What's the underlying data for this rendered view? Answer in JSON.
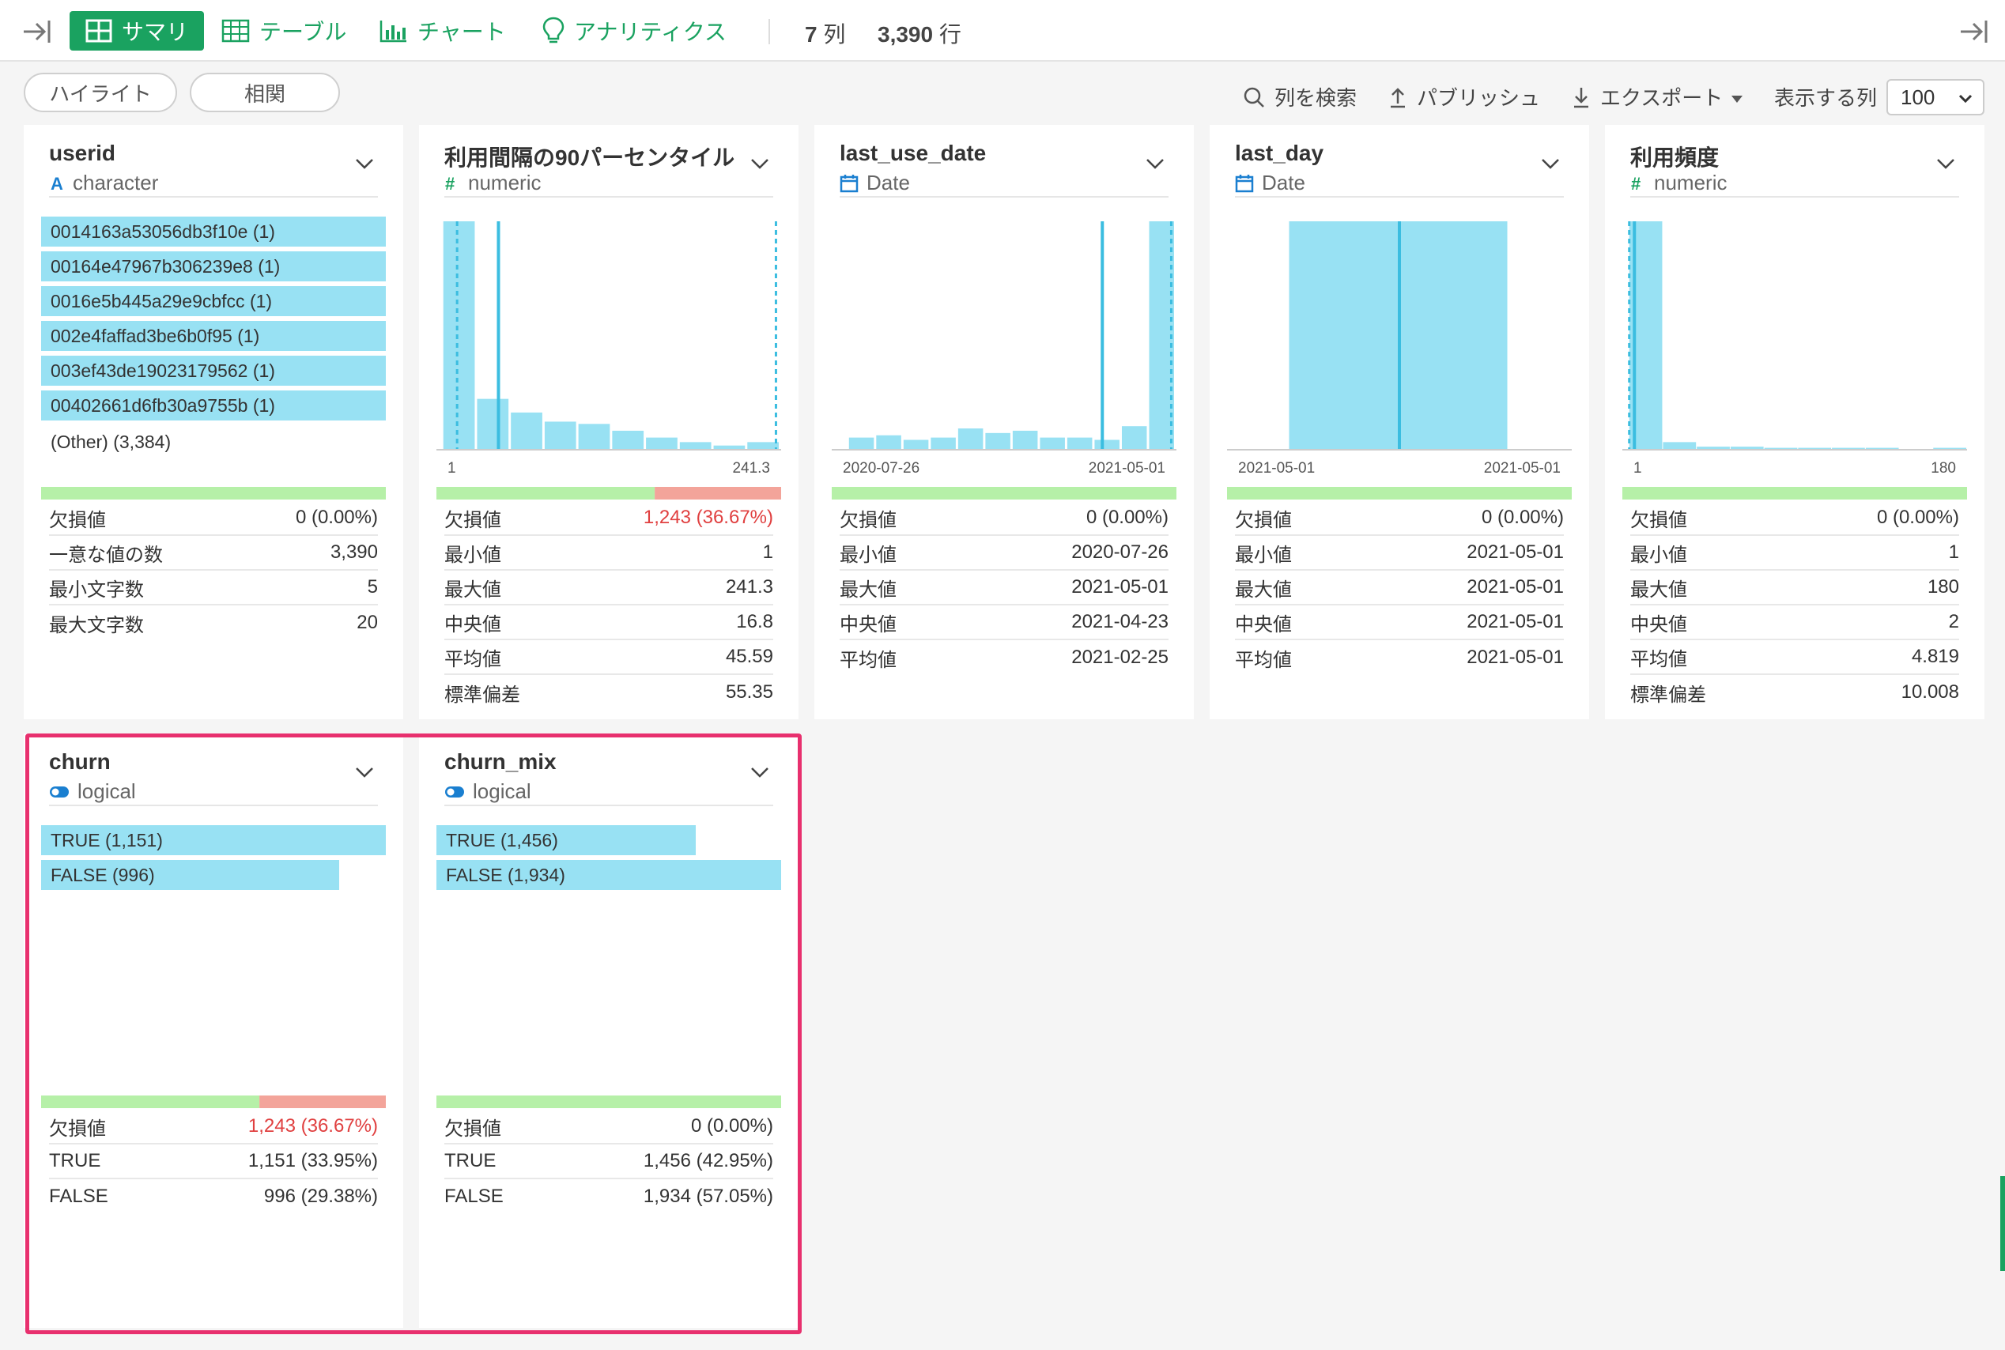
{
  "toolbar": {
    "tabs": [
      {
        "label": "サマリ",
        "icon": "grid-icon",
        "active": true
      },
      {
        "label": "テーブル",
        "icon": "table-icon"
      },
      {
        "label": "チャート",
        "icon": "bar-chart-icon"
      },
      {
        "label": "アナリティクス",
        "icon": "lightbulb-icon"
      }
    ],
    "columns_count": "7",
    "columns_unit": "列",
    "rows_count": "3,390",
    "rows_unit": "行"
  },
  "subbar": {
    "highlight_label": "ハイライト",
    "correlation_label": "相関",
    "search_label": "列を検索",
    "publish_label": "パブリッシュ",
    "export_label": "エクスポート",
    "display_columns_label": "表示する列",
    "display_columns_value": "100"
  },
  "colors": {
    "accent": "#1aa260",
    "bar": "#98e1f3",
    "ok": "#b6f0a8",
    "missing": "#f3a49a",
    "highlight": "#e8306e"
  },
  "cards": {
    "userid": {
      "title": "userid",
      "type": "character",
      "categories": [
        "0014163a53056db3f10e (1)",
        "00164e47967b306239e8 (1)",
        "0016e5b445a29e9cbfcc (1)",
        "002e4faffad3be6b0f95 (1)",
        "003ef43de19023179562 (1)",
        "00402661d6fb30a9755b (1)"
      ],
      "other": "(Other) (3,384)",
      "missing_fraction": 0,
      "stats": [
        {
          "label": "欠損値",
          "value": "0 (0.00%)"
        },
        {
          "label": "一意な値の数",
          "value": "3,390"
        },
        {
          "label": "最小文字数",
          "value": "5"
        },
        {
          "label": "最大文字数",
          "value": "20"
        }
      ]
    },
    "interval90": {
      "title": "利用間隔の90パーセンタイル",
      "type": "numeric",
      "range_min": "1",
      "range_max": "241.3",
      "missing_fraction": 0.3667,
      "stats": [
        {
          "label": "欠損値",
          "value": "1,243 (36.67%)",
          "red": true
        },
        {
          "label": "最小値",
          "value": "1"
        },
        {
          "label": "最大値",
          "value": "241.3"
        },
        {
          "label": "中央値",
          "value": "16.8"
        },
        {
          "label": "平均値",
          "value": "45.59"
        },
        {
          "label": "標準偏差",
          "value": "55.35"
        }
      ]
    },
    "last_use_date": {
      "title": "last_use_date",
      "type": "Date",
      "range_min": "2020-07-26",
      "range_max": "2021-05-01",
      "missing_fraction": 0,
      "stats": [
        {
          "label": "欠損値",
          "value": "0 (0.00%)"
        },
        {
          "label": "最小値",
          "value": "2020-07-26"
        },
        {
          "label": "最大値",
          "value": "2021-05-01"
        },
        {
          "label": "中央値",
          "value": "2021-04-23"
        },
        {
          "label": "平均値",
          "value": "2021-02-25"
        }
      ]
    },
    "last_day": {
      "title": "last_day",
      "type": "Date",
      "range_min": "2021-05-01",
      "range_max": "2021-05-01",
      "missing_fraction": 0,
      "stats": [
        {
          "label": "欠損値",
          "value": "0 (0.00%)"
        },
        {
          "label": "最小値",
          "value": "2021-05-01"
        },
        {
          "label": "最大値",
          "value": "2021-05-01"
        },
        {
          "label": "中央値",
          "value": "2021-05-01"
        },
        {
          "label": "平均値",
          "value": "2021-05-01"
        }
      ]
    },
    "frequency": {
      "title": "利用頻度",
      "type": "numeric",
      "range_min": "1",
      "range_max": "180",
      "missing_fraction": 0,
      "stats": [
        {
          "label": "欠損値",
          "value": "0 (0.00%)"
        },
        {
          "label": "最小値",
          "value": "1"
        },
        {
          "label": "最大値",
          "value": "180"
        },
        {
          "label": "中央値",
          "value": "2"
        },
        {
          "label": "平均値",
          "value": "4.819"
        },
        {
          "label": "標準偏差",
          "value": "10.008"
        }
      ]
    },
    "churn": {
      "title": "churn",
      "type": "logical",
      "bars": [
        {
          "label": "TRUE (1,151)",
          "count": 1151
        },
        {
          "label": "FALSE (996)",
          "count": 996
        }
      ],
      "missing_fraction": 0.3667,
      "stats": [
        {
          "label": "欠損値",
          "value": "1,243 (36.67%)",
          "red": true
        },
        {
          "label": "TRUE",
          "value": "1,151 (33.95%)"
        },
        {
          "label": "FALSE",
          "value": "996 (29.38%)"
        }
      ]
    },
    "churn_mix": {
      "title": "churn_mix",
      "type": "logical",
      "bars": [
        {
          "label": "TRUE (1,456)",
          "count": 1456
        },
        {
          "label": "FALSE (1,934)",
          "count": 1934
        }
      ],
      "missing_fraction": 0,
      "stats": [
        {
          "label": "欠損値",
          "value": "0 (0.00%)"
        },
        {
          "label": "TRUE",
          "value": "1,456 (42.95%)"
        },
        {
          "label": "FALSE",
          "value": "1,934 (57.05%)"
        }
      ]
    }
  },
  "chart_data": [
    {
      "type": "bar",
      "title": "利用間隔の90パーセンタイル",
      "x_range": [
        1,
        241.3
      ],
      "values": [
        100,
        22,
        16,
        12,
        11,
        8,
        5,
        3,
        1.5,
        3
      ]
    },
    {
      "type": "bar",
      "title": "last_use_date",
      "x_range": [
        "2020-07-26",
        "2021-05-01"
      ],
      "values": [
        5,
        6,
        4,
        5,
        9,
        7,
        8,
        5,
        5,
        4,
        10,
        100
      ]
    },
    {
      "type": "bar",
      "title": "last_day",
      "x_range": [
        "2021-05-01",
        "2021-05-01"
      ],
      "values": [
        100
      ]
    },
    {
      "type": "bar",
      "title": "利用頻度",
      "x_range": [
        1,
        180
      ],
      "values": [
        100,
        3,
        1,
        1,
        0.5,
        0.5,
        0.5,
        0.5,
        0,
        0.5
      ]
    }
  ]
}
